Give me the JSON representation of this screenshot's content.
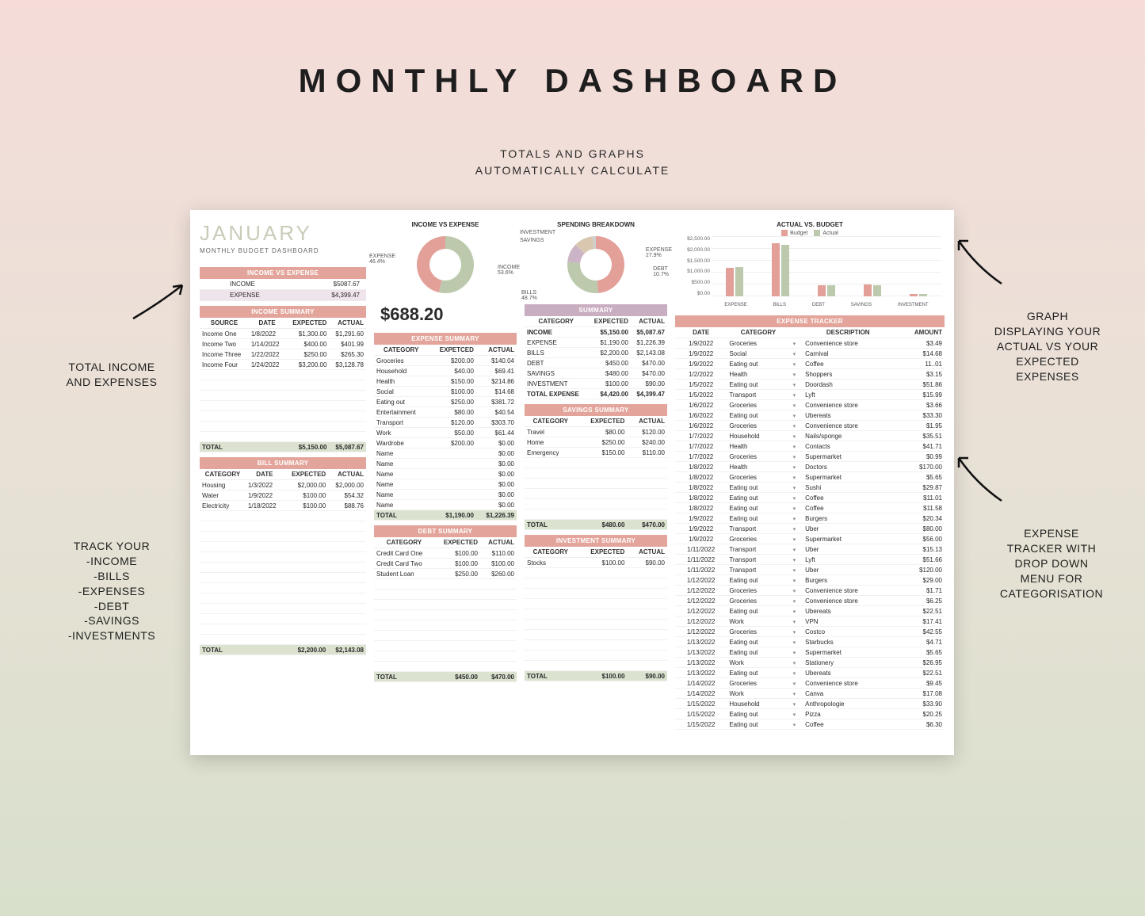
{
  "page": {
    "title": "MONTHLY DASHBOARD",
    "subtitle1": "TOTALS AND GRAPHS",
    "subtitle2": "AUTOMATICALLY CALCULATE"
  },
  "colors": {
    "pink": "#e3a59b",
    "mauve": "#c9adc0",
    "sage": "#b8c4a7",
    "sage_lt": "#dbe3d0",
    "donut_pink": "#e2a098",
    "donut_sage": "#bcc9ad",
    "donut_mauve": "#cbb4c5",
    "donut_tan": "#d9c7b0",
    "donut_grey": "#cfcfcf",
    "text": "#2a2a2a",
    "white": "#ffffff"
  },
  "month": {
    "name": "JANUARY",
    "sub": "MONTHLY BUDGET DASHBOARD"
  },
  "ive": {
    "header": "INCOME VS EXPENSE",
    "rows": [
      [
        "INCOME",
        "$5087.67"
      ],
      [
        "EXPENSE",
        "$4,399.47"
      ]
    ]
  },
  "income_summary": {
    "header": "INCOME SUMMARY",
    "cols": [
      "SOURCE",
      "DATE",
      "EXPECTED",
      "ACTUAL"
    ],
    "rows": [
      [
        "Income One",
        "1/8/2022",
        "$1,300.00",
        "$1,291.60"
      ],
      [
        "Income Two",
        "1/14/2022",
        "$400.00",
        "$401.99"
      ],
      [
        "Income Three",
        "1/22/2022",
        "$250.00",
        "$265.30"
      ],
      [
        "Income Four",
        "1/24/2022",
        "$3,200.00",
        "$3,128.78"
      ]
    ],
    "blank_rows": 7,
    "total": [
      "TOTAL",
      "",
      "$5,150.00",
      "$5,087.67"
    ]
  },
  "bill_summary": {
    "header": "BILL SUMMARY",
    "cols": [
      "CATEGORY",
      "DATE",
      "EXPECTED",
      "ACTUAL"
    ],
    "rows": [
      [
        "Housing",
        "1/3/2022",
        "$2,000.00",
        "$2,000.00"
      ],
      [
        "Water",
        "1/9/2022",
        "$100.00",
        "$54.32"
      ],
      [
        "Electricity",
        "1/18/2022",
        "$100.00",
        "$88.76"
      ]
    ],
    "blank_rows": 13,
    "total": [
      "TOTAL",
      "",
      "$2,200.00",
      "$2,143.08"
    ]
  },
  "donut1": {
    "title": "INCOME VS EXPENSE",
    "slices": [
      {
        "label": "INCOME",
        "pct": 53.6,
        "color": "#bcc9ad",
        "lbl": "INCOME\n53.6%"
      },
      {
        "label": "EXPENSE",
        "pct": 46.4,
        "color": "#e2a098",
        "lbl": "EXPENSE\n46.4%"
      }
    ]
  },
  "big_number": "$688.20",
  "expense_summary": {
    "header": "EXPENSE SUMMARY",
    "cols": [
      "CATEGORY",
      "EXPETCED",
      "ACTUAL"
    ],
    "rows": [
      [
        "Groceries",
        "$200.00",
        "$140.04"
      ],
      [
        "Household",
        "$40.00",
        "$69.41"
      ],
      [
        "Health",
        "$150.00",
        "$214.86"
      ],
      [
        "Social",
        "$100.00",
        "$14.68"
      ],
      [
        "Eating out",
        "$250.00",
        "$381.72"
      ],
      [
        "Entertainment",
        "$80.00",
        "$40.54"
      ],
      [
        "Transport",
        "$120.00",
        "$303.70"
      ],
      [
        "Work",
        "$50.00",
        "$61.44"
      ],
      [
        "Wardrobe",
        "$200.00",
        "$0.00"
      ],
      [
        "Name",
        "",
        "$0.00"
      ],
      [
        "Name",
        "",
        "$0.00"
      ],
      [
        "Name",
        "",
        "$0.00"
      ],
      [
        "Name",
        "",
        "$0.00"
      ],
      [
        "Name",
        "",
        "$0.00"
      ],
      [
        "Name",
        "",
        "$0.00"
      ]
    ],
    "total": [
      "TOTAL",
      "$1,190.00",
      "$1,226.39"
    ]
  },
  "debt_summary": {
    "header": "DEBT SUMMARY",
    "cols": [
      "CATEGORY",
      "EXPECTED",
      "ACTUAL"
    ],
    "rows": [
      [
        "Credit Card One",
        "$100.00",
        "$110.00"
      ],
      [
        "Credit Card Two",
        "$100.00",
        "$100.00"
      ],
      [
        "Student Loan",
        "$250.00",
        "$260.00"
      ]
    ],
    "blank_rows": 9,
    "total": [
      "TOTAL",
      "$450.00",
      "$470.00"
    ]
  },
  "donut2": {
    "title": "SPENDING BREAKDOWN",
    "slices": [
      {
        "label": "BILLS",
        "pct": 48.7,
        "color": "#e2a098"
      },
      {
        "label": "EXPENSE",
        "pct": 27.9,
        "color": "#bcc9ad"
      },
      {
        "label": "DEBT",
        "pct": 10.7,
        "color": "#cbb4c5"
      },
      {
        "label": "SAVINGS",
        "pct": 10.7,
        "color": "#d9c7b0"
      },
      {
        "label": "INVESTMENT",
        "pct": 2.0,
        "color": "#cfcfcf"
      }
    ],
    "lbls": {
      "bills": "BILLS\n48.7%",
      "expense": "EXPENSE\n27.9%",
      "debt": "DEBT\n10.7%",
      "savings": "SAVINGS",
      "invest": "INVESTMENT"
    }
  },
  "summary": {
    "header": "SUMMARY",
    "cols": [
      "CATEGORY",
      "EXPECTED",
      "ACTUAL"
    ],
    "rows": [
      {
        "c": [
          "INCOME",
          "$5,150.00",
          "$5,087.67"
        ],
        "bold": true
      },
      {
        "c": [
          "EXPENSE",
          "$1,190.00",
          "$1,226.39"
        ]
      },
      {
        "c": [
          "BILLS",
          "$2,200.00",
          "$2,143.08"
        ]
      },
      {
        "c": [
          "DEBT",
          "$450.00",
          "$470.00"
        ]
      },
      {
        "c": [
          "SAVINGS",
          "$480.00",
          "$470.00"
        ]
      },
      {
        "c": [
          "INVESTMENT",
          "$100.00",
          "$90.00"
        ]
      },
      {
        "c": [
          "TOTAL EXPENSE",
          "$4,420.00",
          "$4,399.47"
        ],
        "bold": true
      }
    ]
  },
  "savings_summary": {
    "header": "SAVINGS SUMMARY",
    "cols": [
      "CATEGORY",
      "EXPECTED",
      "ACTUAL"
    ],
    "rows": [
      [
        "Travel",
        "$80.00",
        "$120.00"
      ],
      [
        "Home",
        "$250.00",
        "$240.00"
      ],
      [
        "Emergency",
        "$150.00",
        "$110.00"
      ]
    ],
    "blank_rows": 6,
    "total": [
      "TOTAL",
      "$480.00",
      "$470.00"
    ]
  },
  "investment_summary": {
    "header": "INVESTMENT SUMMARY",
    "cols": [
      "CATEGORY",
      "EXPECTED",
      "ACTUAL"
    ],
    "rows": [
      [
        "Stocks",
        "$100.00",
        "$90.00"
      ]
    ],
    "blank_rows": 10,
    "total": [
      "TOTAL",
      "$100.00",
      "$90.00"
    ]
  },
  "barchart": {
    "title": "ACTUAL VS. BUDGET",
    "legend": [
      {
        "label": "Budget",
        "color": "#e2a098"
      },
      {
        "label": "Actual",
        "color": "#bcc9ad"
      }
    ],
    "ymax": 2500,
    "yticks": [
      "$2,500.00",
      "$2,000.00",
      "$1,500.00",
      "$1,000.00",
      "$500.00",
      "$0.00"
    ],
    "categories": [
      "EXPENSE",
      "BILLS",
      "DEBT",
      "SAVINGS",
      "INVESTMENT"
    ],
    "series": [
      {
        "name": "Budget",
        "color": "#e2a098",
        "values": [
          1190,
          2200,
          450,
          480,
          100
        ]
      },
      {
        "name": "Actual",
        "color": "#bcc9ad",
        "values": [
          1226,
          2143,
          470,
          470,
          90
        ]
      }
    ]
  },
  "tracker": {
    "header": "EXPENSE TRACKER",
    "cols": [
      "DATE",
      "CATEGORY",
      "",
      "DESCRIPTION",
      "AMOUNT"
    ],
    "rows": [
      [
        "1/9/2022",
        "Groceries",
        "Convenience store",
        "$3.49"
      ],
      [
        "1/9/2022",
        "Social",
        "Carnival",
        "$14.68"
      ],
      [
        "1/9/2022",
        "Eating out",
        "Coffee",
        "11..01"
      ],
      [
        "1/2/2022",
        "Health",
        "Shoppers",
        "$3.15"
      ],
      [
        "1/5/2022",
        "Eating out",
        "Doordash",
        "$51.86"
      ],
      [
        "1/5/2022",
        "Transport",
        "Lyft",
        "$15.99"
      ],
      [
        "1/6/2022",
        "Groceries",
        "Convenience store",
        "$3.66"
      ],
      [
        "1/6/2022",
        "Eating out",
        "Ubereats",
        "$33.30"
      ],
      [
        "1/6/2022",
        "Groceries",
        "Convenience store",
        "$1.95"
      ],
      [
        "1/7/2022",
        "Household",
        "Nails/sponge",
        "$35.51"
      ],
      [
        "1/7/2022",
        "Health",
        "Contacts",
        "$41.71"
      ],
      [
        "1/7/2022",
        "Groceries",
        "Supermarket",
        "$0.99"
      ],
      [
        "1/8/2022",
        "Health",
        "Doctors",
        "$170.00"
      ],
      [
        "1/8/2022",
        "Groceries",
        "Supermarket",
        "$5.65"
      ],
      [
        "1/8/2022",
        "Eating out",
        "Sushi",
        "$29.87"
      ],
      [
        "1/8/2022",
        "Eating out",
        "Coffee",
        "$11.01"
      ],
      [
        "1/8/2022",
        "Eating out",
        "Coffee",
        "$11.58"
      ],
      [
        "1/9/2022",
        "Eating out",
        "Burgers",
        "$20.34"
      ],
      [
        "1/9/2022",
        "Transport",
        "Uber",
        "$80.00"
      ],
      [
        "1/9/2022",
        "Groceries",
        "Supermarket",
        "$56.00"
      ],
      [
        "1/11/2022",
        "Transport",
        "Uber",
        "$15.13"
      ],
      [
        "1/11/2022",
        "Transport",
        "Lyft",
        "$51.66"
      ],
      [
        "1/11/2022",
        "Transport",
        "Uber",
        "$120.00"
      ],
      [
        "1/12/2022",
        "Eating out",
        "Burgers",
        "$29.00"
      ],
      [
        "1/12/2022",
        "Groceries",
        "Convenience store",
        "$1.71"
      ],
      [
        "1/12/2022",
        "Groceries",
        "Convenience store",
        "$6.25"
      ],
      [
        "1/12/2022",
        "Eating out",
        "Ubereats",
        "$22.51"
      ],
      [
        "1/12/2022",
        "Work",
        "VPN",
        "$17.41"
      ],
      [
        "1/12/2022",
        "Groceries",
        "Costco",
        "$42.55"
      ],
      [
        "1/13/2022",
        "Eating out",
        "Starbucks",
        "$4.71"
      ],
      [
        "1/13/2022",
        "Eating out",
        "Supermarket",
        "$5.65"
      ],
      [
        "1/13/2022",
        "Work",
        "Stationery",
        "$26.95"
      ],
      [
        "1/13/2022",
        "Eating out",
        "Ubereats",
        "$22.51"
      ],
      [
        "1/14/2022",
        "Groceries",
        "Convenience store",
        "$9.45"
      ],
      [
        "1/14/2022",
        "Work",
        "Canva",
        "$17.08"
      ],
      [
        "1/15/2022",
        "Household",
        "Anthropologie",
        "$33.90"
      ],
      [
        "1/15/2022",
        "Eating out",
        "Pizza",
        "$20.25"
      ],
      [
        "1/15/2022",
        "Eating out",
        "Coffee",
        "$6.30"
      ]
    ]
  },
  "callouts": {
    "left1": "TOTAL INCOME\nAND EXPENSES",
    "left2": "TRACK YOUR\n-INCOME\n-BILLS\n-EXPENSES\n-DEBT\n-SAVINGS\n-INVESTMENTS",
    "right1": "GRAPH\nDISPLAYING YOUR\nACTUAL VS YOUR\nEXPECTED\nEXPENSES",
    "right2": "EXPENSE\nTRACKER WITH\nDROP DOWN\nMENU FOR\nCATEGORISATION"
  }
}
